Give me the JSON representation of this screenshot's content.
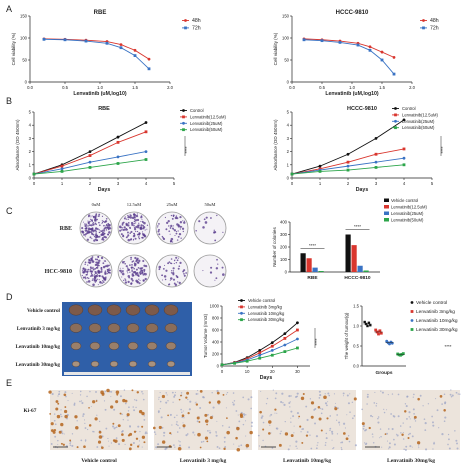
{
  "panels": {
    "A": {
      "letter": "A"
    },
    "B": {
      "letter": "B"
    },
    "C": {
      "letter": "C"
    },
    "D": {
      "letter": "D"
    },
    "E": {
      "letter": "E"
    }
  },
  "colors": {
    "red": "#d9362e",
    "blue": "#3a73c4",
    "black": "#111111",
    "green": "#2ca54a",
    "purple": "#5b3f8f"
  },
  "chart_data": [
    {
      "id": "A-RBE",
      "type": "line",
      "title": "RBE",
      "xlabel": "Lenvatinib (uM,log10)",
      "ylabel": "Cell viability (%)",
      "xlim": [
        0,
        2.0
      ],
      "ylim": [
        0,
        150
      ],
      "xticks": [
        "0.0",
        "0.5",
        "1.0",
        "1.5",
        "2.0"
      ],
      "yticks": [
        "0",
        "50",
        "100",
        "150"
      ],
      "series": [
        {
          "name": "48h",
          "color": "#d9362e",
          "x": [
            0.2,
            0.5,
            0.8,
            1.1,
            1.3,
            1.5,
            1.7
          ],
          "y": [
            98,
            97,
            95,
            92,
            85,
            72,
            52
          ]
        },
        {
          "name": "72h",
          "color": "#3a73c4",
          "x": [
            0.2,
            0.5,
            0.8,
            1.1,
            1.3,
            1.5,
            1.7
          ],
          "y": [
            97,
            96,
            93,
            88,
            78,
            60,
            30
          ]
        }
      ]
    },
    {
      "id": "A-HCCC",
      "type": "line",
      "title": "HCCC-9810",
      "xlabel": "Lenvatinib (uM,log10)",
      "ylabel": "Cell viability (%)",
      "xlim": [
        0,
        2.0
      ],
      "ylim": [
        0,
        150
      ],
      "xticks": [
        "0.0",
        "0.5",
        "1.0",
        "1.5",
        "2.0"
      ],
      "yticks": [
        "0",
        "50",
        "100",
        "150"
      ],
      "series": [
        {
          "name": "48h",
          "color": "#d9362e",
          "x": [
            0.2,
            0.5,
            0.8,
            1.1,
            1.3,
            1.5,
            1.7
          ],
          "y": [
            98,
            96,
            93,
            88,
            80,
            68,
            56
          ]
        },
        {
          "name": "72h",
          "color": "#3a73c4",
          "x": [
            0.2,
            0.5,
            0.8,
            1.1,
            1.3,
            1.5,
            1.7
          ],
          "y": [
            96,
            94,
            90,
            84,
            72,
            50,
            18
          ]
        }
      ]
    },
    {
      "id": "B-RBE",
      "type": "line",
      "title": "RBE",
      "xlabel": "Days",
      "ylabel": "Absorbance (OD 450nm)",
      "xlim": [
        0,
        5
      ],
      "ylim": [
        0,
        5
      ],
      "significance": "****",
      "xticks": [
        "0",
        "1",
        "2",
        "3",
        "4",
        "5"
      ],
      "yticks": [
        "0",
        "1",
        "2",
        "3",
        "4",
        "5"
      ],
      "series": [
        {
          "name": "Control",
          "color": "#111111",
          "x": [
            0,
            1,
            2,
            3,
            4
          ],
          "y": [
            0.3,
            1.0,
            2.0,
            3.1,
            4.2
          ]
        },
        {
          "name": "Lenvatinib(12.5uM)",
          "color": "#d9362e",
          "x": [
            0,
            1,
            2,
            3,
            4
          ],
          "y": [
            0.3,
            0.9,
            1.7,
            2.7,
            3.5
          ]
        },
        {
          "name": "Lenvatinib(25uM)",
          "color": "#3a73c4",
          "x": [
            0,
            1,
            2,
            3,
            4
          ],
          "y": [
            0.3,
            0.7,
            1.2,
            1.6,
            2.0
          ]
        },
        {
          "name": "Lenvatinib(50uM)",
          "color": "#2ca54a",
          "x": [
            0,
            1,
            2,
            3,
            4
          ],
          "y": [
            0.3,
            0.5,
            0.8,
            1.1,
            1.4
          ]
        }
      ]
    },
    {
      "id": "B-HCCC",
      "type": "line",
      "title": "HCCC-9810",
      "xlabel": "Days",
      "ylabel": "Absorbance (OD 450nm)",
      "xlim": [
        0,
        5
      ],
      "ylim": [
        0,
        5
      ],
      "significance": "****",
      "xticks": [
        "0",
        "1",
        "2",
        "3",
        "4",
        "5"
      ],
      "yticks": [
        "0",
        "1",
        "2",
        "3",
        "4",
        "5"
      ],
      "series": [
        {
          "name": "Control",
          "color": "#111111",
          "x": [
            0,
            1,
            2,
            3,
            4
          ],
          "y": [
            0.3,
            0.9,
            1.8,
            3.0,
            4.4
          ]
        },
        {
          "name": "Lenvatinib(12.5uM)",
          "color": "#d9362e",
          "x": [
            0,
            1,
            2,
            3,
            4
          ],
          "y": [
            0.3,
            0.7,
            1.2,
            1.8,
            2.2
          ]
        },
        {
          "name": "Lenvatinib(25uM)",
          "color": "#3a73c4",
          "x": [
            0,
            1,
            2,
            3,
            4
          ],
          "y": [
            0.3,
            0.6,
            0.9,
            1.2,
            1.5
          ]
        },
        {
          "name": "Lenvatinib(50uM)",
          "color": "#2ca54a",
          "x": [
            0,
            1,
            2,
            3,
            4
          ],
          "y": [
            0.3,
            0.5,
            0.6,
            0.8,
            1.0
          ]
        }
      ]
    },
    {
      "id": "C-colonies",
      "type": "bar",
      "ylabel": "Number of colonies",
      "ylim": [
        0,
        400
      ],
      "yticks": [
        "0",
        "100",
        "200",
        "300",
        "400"
      ],
      "categories": [
        "RBE",
        "HCCC-9810"
      ],
      "significance": [
        "****",
        "****"
      ],
      "series": [
        {
          "name": "Vehicle control",
          "color": "#111111",
          "values": [
            150,
            300
          ]
        },
        {
          "name": "Lenvatinib(12.5uM)",
          "color": "#d9362e",
          "values": [
            110,
            215
          ]
        },
        {
          "name": "Lenvatinib(25uM)",
          "color": "#3a73c4",
          "values": [
            35,
            50
          ]
        },
        {
          "name": "Lenvatinib(50uM)",
          "color": "#2ca54a",
          "values": [
            8,
            12
          ]
        }
      ]
    },
    {
      "id": "D-volume",
      "type": "line",
      "xlabel": "Days",
      "ylabel": "Tumor Volume (mm3)",
      "xlim": [
        0,
        35
      ],
      "ylim": [
        0,
        1000
      ],
      "significance": "****",
      "xticks": [
        "0",
        "10",
        "20",
        "30"
      ],
      "yticks": [
        "0",
        "200",
        "400",
        "600",
        "800",
        "1000"
      ],
      "series": [
        {
          "name": "Vehicle control",
          "color": "#111111",
          "x": [
            0,
            5,
            10,
            15,
            20,
            25,
            30
          ],
          "y": [
            20,
            60,
            140,
            260,
            390,
            540,
            720
          ]
        },
        {
          "name": "Lenvatinib 3mg/kg",
          "color": "#d9362e",
          "x": [
            0,
            5,
            10,
            15,
            20,
            25,
            30
          ],
          "y": [
            20,
            55,
            120,
            220,
            330,
            460,
            600
          ]
        },
        {
          "name": "Lenvatinib 10mg/kg",
          "color": "#3a73c4",
          "x": [
            0,
            5,
            10,
            15,
            20,
            25,
            30
          ],
          "y": [
            20,
            50,
            100,
            180,
            260,
            350,
            450
          ]
        },
        {
          "name": "Lenvatinib 30mg/kg",
          "color": "#2ca54a",
          "x": [
            0,
            5,
            10,
            15,
            20,
            25,
            30
          ],
          "y": [
            20,
            45,
            80,
            130,
            180,
            240,
            300
          ]
        }
      ]
    },
    {
      "id": "D-weight",
      "type": "scatter",
      "xlabel": "Groups",
      "ylabel": "The weight of tumour(g)",
      "ylim": [
        0,
        1.5
      ],
      "yticks": [
        "0.0",
        "0.5",
        "1.0",
        "1.5"
      ],
      "significance": "****",
      "series": [
        {
          "name": "Vehicle control",
          "color": "#111111",
          "values": [
            1.1,
            1.05,
            1.0,
            1.08,
            1.02
          ]
        },
        {
          "name": "Lenvatinib 3mg/kg",
          "color": "#d9362e",
          "values": [
            0.9,
            0.85,
            0.8,
            0.88,
            0.82
          ]
        },
        {
          "name": "Lenvatinib 10mg/kg",
          "color": "#3a73c4",
          "values": [
            0.62,
            0.58,
            0.55,
            0.6,
            0.57
          ]
        },
        {
          "name": "Lenvatinib 30mg/kg",
          "color": "#2ca54a",
          "values": [
            0.3,
            0.28,
            0.27,
            0.29,
            0.31
          ]
        }
      ]
    }
  ],
  "colony": {
    "concentrations": [
      "0uM",
      "12.5uM",
      "25uM",
      "50uM"
    ],
    "rows": [
      "RBE",
      "HCC-9810"
    ],
    "density": [
      [
        0.95,
        0.75,
        0.35,
        0.08
      ],
      [
        0.9,
        0.6,
        0.3,
        0.06
      ]
    ]
  },
  "tumors": {
    "rows": [
      "Vehicle control",
      "Lenvatinib  3 mg/kg",
      "Lenvatinib 10mg/kg",
      "Lenvatinib 30mg/kg"
    ]
  },
  "ihc": {
    "row_label": "Ki-67",
    "captions": [
      "Vehicle control",
      "Lenvatinib  3 mg/kg",
      "Lenvatinib  10mg/kg",
      "Lenvatinib 30mg/kg"
    ],
    "stain_density": [
      0.9,
      0.6,
      0.35,
      0.15
    ]
  }
}
